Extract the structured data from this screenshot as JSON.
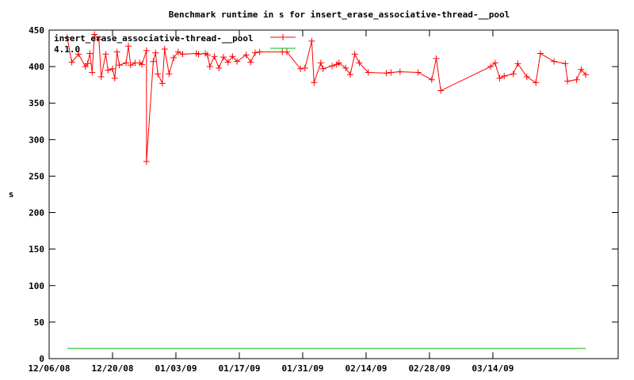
{
  "chart_data": {
    "type": "line",
    "title": "Benchmark runtime in s for insert_erase_associative-thread-__pool",
    "xlabel": "",
    "ylabel": "s",
    "ylim": [
      0,
      450
    ],
    "xlim": [
      "2008-12-06",
      "2009-04-10T16:00"
    ],
    "yticks": [
      0,
      50,
      100,
      150,
      200,
      250,
      300,
      350,
      400,
      450
    ],
    "xticks": [
      {
        "date": "2008-12-06",
        "label": "12/06/08"
      },
      {
        "date": "2008-12-20",
        "label": "12/20/08"
      },
      {
        "date": "2009-01-03",
        "label": "01/03/09"
      },
      {
        "date": "2009-01-17",
        "label": "01/17/09"
      },
      {
        "date": "2009-01-31",
        "label": "01/31/09"
      },
      {
        "date": "2009-02-14",
        "label": "02/14/09"
      },
      {
        "date": "2009-02-28",
        "label": "02/28/09"
      },
      {
        "date": "2009-03-14",
        "label": "03/14/09"
      }
    ],
    "grid": false,
    "legend_position": "top-left",
    "series": [
      {
        "name": "insert_erase_associative-thread-__pool",
        "color": "#ff0000",
        "marker": "plus",
        "points": [
          [
            "2008-12-10",
            440
          ],
          [
            "2008-12-11",
            406
          ],
          [
            "2008-12-12T12:00",
            417
          ],
          [
            "2008-12-14",
            400
          ],
          [
            "2008-12-14T12:00",
            404
          ],
          [
            "2008-12-15",
            418
          ],
          [
            "2008-12-15T12:00",
            392
          ],
          [
            "2008-12-16",
            444
          ],
          [
            "2008-12-17",
            437
          ],
          [
            "2008-12-17T12:00",
            386
          ],
          [
            "2008-12-18T12:00",
            417
          ],
          [
            "2008-12-19",
            395
          ],
          [
            "2008-12-20",
            397
          ],
          [
            "2008-12-20T12:00",
            384
          ],
          [
            "2008-12-21",
            420
          ],
          [
            "2008-12-21T12:00",
            402
          ],
          [
            "2008-12-23",
            405
          ],
          [
            "2008-12-23T12:00",
            428
          ],
          [
            "2008-12-24",
            402
          ],
          [
            "2008-12-25",
            405
          ],
          [
            "2008-12-26",
            405
          ],
          [
            "2008-12-26T12:00",
            403
          ],
          [
            "2008-12-27T12:00",
            422
          ],
          [
            "2008-12-27T12:00",
            270
          ],
          [
            "2008-12-29",
            407
          ],
          [
            "2008-12-29T12:00",
            419
          ],
          [
            "2008-12-30",
            390
          ],
          [
            "2008-12-31",
            377
          ],
          [
            "2008-12-31T12:00",
            424
          ],
          [
            "2009-01-01T12:00",
            390
          ],
          [
            "2009-01-02T12:00",
            412
          ],
          [
            "2009-01-03T12:00",
            420
          ],
          [
            "2009-01-04T12:00",
            417
          ],
          [
            "2009-01-07T12:00",
            418
          ],
          [
            "2009-01-08",
            417
          ],
          [
            "2009-01-09T12:00",
            418
          ],
          [
            "2009-01-10",
            416
          ],
          [
            "2009-01-10T12:00",
            400
          ],
          [
            "2009-01-11T12:00",
            414
          ],
          [
            "2009-01-12T12:00",
            398
          ],
          [
            "2009-01-13T12:00",
            413
          ],
          [
            "2009-01-14T12:00",
            406
          ],
          [
            "2009-01-15T12:00",
            414
          ],
          [
            "2009-01-16T12:00",
            407
          ],
          [
            "2009-01-18T12:00",
            416
          ],
          [
            "2009-01-19T12:00",
            406
          ],
          [
            "2009-01-20T12:00",
            419
          ],
          [
            "2009-01-21T12:00",
            420
          ],
          [
            "2009-01-26T12:00",
            420
          ],
          [
            "2009-01-27T12:00",
            420
          ],
          [
            "2009-01-30T12:00",
            397
          ],
          [
            "2009-01-31T12:00",
            398
          ],
          [
            "2009-02-02",
            435
          ],
          [
            "2009-02-02T12:00",
            378
          ],
          [
            "2009-02-04",
            405
          ],
          [
            "2009-02-04T12:00",
            397
          ],
          [
            "2009-02-06T12:00",
            401
          ],
          [
            "2009-02-07T12:00",
            403
          ],
          [
            "2009-02-08",
            405
          ],
          [
            "2009-02-09T12:00",
            398
          ],
          [
            "2009-02-10T12:00",
            389
          ],
          [
            "2009-02-11T12:00",
            417
          ],
          [
            "2009-02-12T12:00",
            405
          ],
          [
            "2009-02-14T12:00",
            392
          ],
          [
            "2009-02-18T12:00",
            391
          ],
          [
            "2009-02-19T12:00",
            392
          ],
          [
            "2009-02-21T12:00",
            393
          ],
          [
            "2009-02-25T12:00",
            392
          ],
          [
            "2009-02-28T12:00",
            382
          ],
          [
            "2009-03-01T12:00",
            411
          ],
          [
            "2009-03-02T12:00",
            367
          ],
          [
            "2009-03-13T12:00",
            400
          ],
          [
            "2009-03-14T12:00",
            405
          ],
          [
            "2009-03-15T12:00",
            384
          ],
          [
            "2009-03-16T12:00",
            387
          ],
          [
            "2009-03-18T12:00",
            390
          ],
          [
            "2009-03-19T12:00",
            404
          ],
          [
            "2009-03-21T12:00",
            386
          ],
          [
            "2009-03-23T12:00",
            378
          ],
          [
            "2009-03-24T12:00",
            418
          ],
          [
            "2009-03-27T12:00",
            407
          ],
          [
            "2009-03-30",
            404
          ],
          [
            "2009-03-30T12:00",
            380
          ],
          [
            "2009-04-01T12:00",
            382
          ],
          [
            "2009-04-02T12:00",
            396
          ],
          [
            "2009-04-03T12:00",
            389
          ]
        ]
      },
      {
        "name": "4.1.0",
        "color": "#00c000",
        "marker": "none",
        "points": [
          [
            "2008-12-10",
            14
          ],
          [
            "2009-04-03T12:00",
            14
          ]
        ]
      }
    ]
  }
}
